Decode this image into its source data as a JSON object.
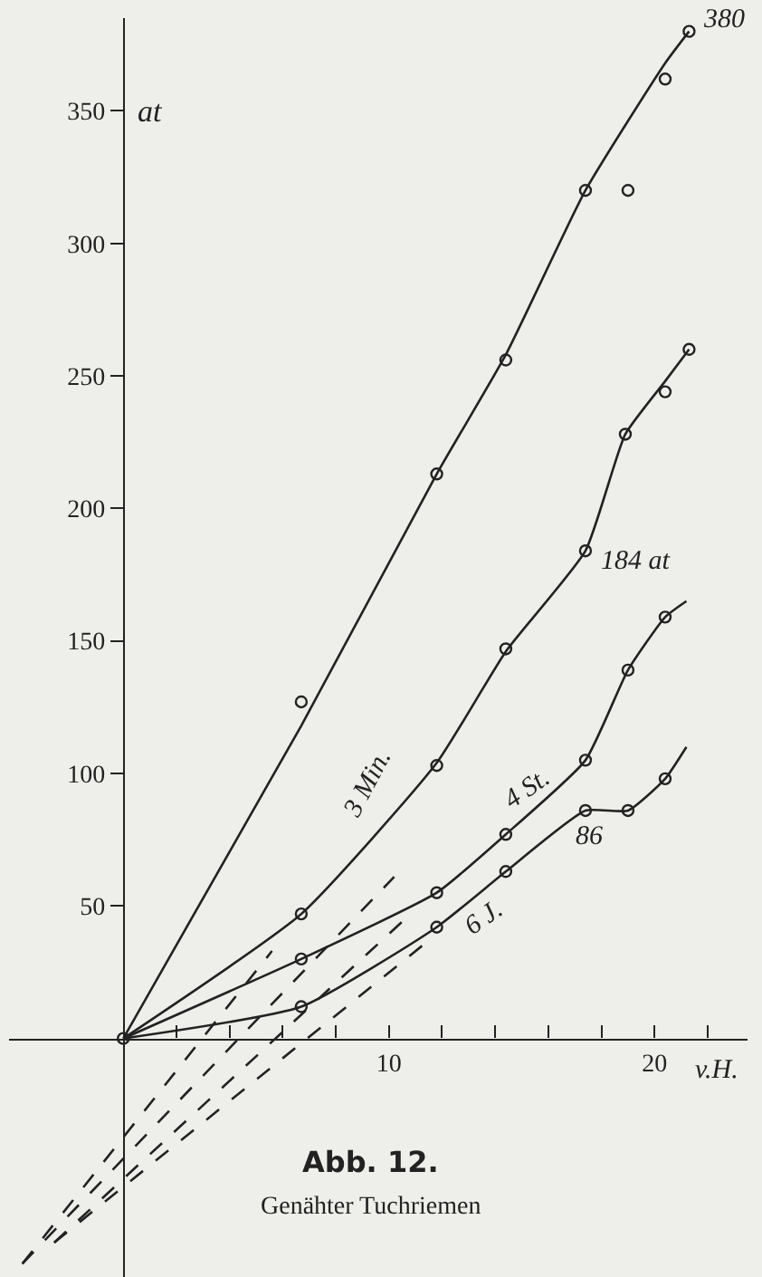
{
  "chart_data": {
    "type": "line",
    "title": "Abb. 12.",
    "subtitle": "Genähter Tuchriemen",
    "xlabel": "v.H.",
    "ylabel": "at",
    "xlim": [
      -4.3,
      23.5
    ],
    "ylim": [
      -90,
      385
    ],
    "xticks": [
      {
        "value": 2,
        "label": null
      },
      {
        "value": 4,
        "label": null
      },
      {
        "value": 6,
        "label": null
      },
      {
        "value": 8,
        "label": null
      },
      10,
      {
        "value": 12,
        "label": null
      },
      {
        "value": 14,
        "label": null
      },
      {
        "value": 16,
        "label": null
      },
      {
        "value": 18,
        "label": null
      },
      20,
      {
        "value": 22,
        "label": null
      }
    ],
    "yticks": [
      50,
      100,
      150,
      200,
      250,
      300,
      350
    ],
    "series": [
      {
        "color": "#222222",
        "x": [
          0,
          6.7,
          11.8,
          14.4,
          17.4,
          20.4,
          21.3
        ],
        "values": [
          0,
          118,
          213,
          258,
          320,
          368,
          380
        ]
      },
      {
        "color": "#222222",
        "x": [
          0,
          6.7,
          11.8,
          14.4,
          17.4,
          18.9,
          20.4,
          21.3
        ],
        "values": [
          0,
          47,
          104,
          146,
          184,
          228,
          248,
          260
        ]
      },
      {
        "color": "#222222",
        "x": [
          0,
          6.7,
          11.8,
          14.4,
          17.4,
          19.0,
          20.4,
          21.2
        ],
        "values": [
          0,
          30,
          55,
          77,
          105,
          139,
          159,
          165
        ]
      },
      {
        "color": "#222222",
        "x": [
          0,
          6.7,
          11.8,
          14.4,
          17.4,
          19.0,
          20.4,
          21.2
        ],
        "values": [
          0,
          12,
          42,
          63,
          86,
          86,
          98,
          110
        ]
      },
      {
        "type": "scatter",
        "color": "#222222",
        "x": [
          0,
          6.7,
          11.8,
          14.4,
          17.4,
          19.0,
          20.4,
          21.3
        ],
        "values": [
          0,
          127,
          213,
          256,
          320,
          320,
          362,
          380
        ]
      },
      {
        "type": "scatter",
        "color": "#222222",
        "x": [
          6.7,
          11.8,
          14.4,
          17.4,
          18.9,
          20.4,
          21.3
        ],
        "values": [
          47,
          103,
          147,
          184,
          228,
          244,
          260
        ]
      },
      {
        "type": "scatter",
        "color": "#222222",
        "x": [
          6.7,
          11.8,
          14.4,
          17.4,
          19.0,
          20.4
        ],
        "values": [
          30,
          55,
          77,
          105,
          139,
          159
        ]
      },
      {
        "type": "scatter",
        "color": "#222222",
        "x": [
          6.7,
          11.8,
          14.4,
          17.4,
          19.0,
          20.4
        ],
        "values": [
          12,
          42,
          63,
          86,
          86,
          98
        ]
      },
      {
        "line_style": "dashed",
        "color": "#222222",
        "x": [
          -3.8,
          5.6
        ],
        "values": [
          -85,
          33
        ]
      },
      {
        "line_style": "dashed",
        "color": "#222222",
        "x": [
          -3.8,
          10.2
        ],
        "values": [
          -85,
          61
        ]
      },
      {
        "line_style": "dashed",
        "color": "#222222",
        "x": [
          -2.6,
          10.6
        ],
        "values": [
          -77,
          45
        ]
      },
      {
        "line_style": "dashed",
        "color": "#222222",
        "x": [
          -2.6,
          11.5
        ],
        "values": [
          -77,
          37
        ]
      }
    ],
    "annotations": [
      "380",
      "184 at",
      "3 Min.",
      "4 St.",
      "86",
      "6 J."
    ]
  }
}
